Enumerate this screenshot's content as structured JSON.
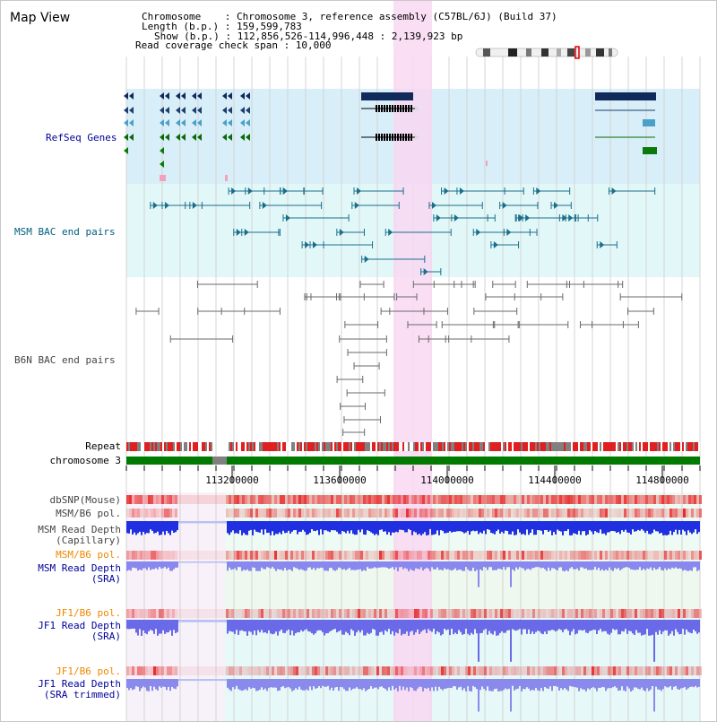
{
  "view_title": "Map View",
  "info": {
    "chromosome_line": "Chromosome    : Chromosome 3, reference assembly (C57BL/6J) (Build 37)",
    "length_line": "Length (b.p.) : 159,599,783",
    "show_line": "Show (b.p.) : 112,856,526-114,996,448 : 2,139,923 bp",
    "coverage_line": "Read coverage check span : 10,000"
  },
  "tracks": {
    "refseq": "RefSeq Genes",
    "msm_bac": "MSM BAC end pairs",
    "b6n_bac": "B6N BAC end pairs",
    "repeat": "Repeat",
    "chromosome": "chromosome 3",
    "dbsnp": "dbSNP(Mouse)",
    "msm_b6_pol_1": "MSM/B6 pol.",
    "msm_depth_cap_1": "MSM Read Depth",
    "msm_depth_cap_2": "(Capillary)",
    "msm_b6_pol_2": "MSM/B6 pol.",
    "msm_depth_sra_1": "MSM Read Depth",
    "msm_depth_sra_2": "(SRA)",
    "jf1_b6_pol_1": "JF1/B6 pol.",
    "jf1_depth_sra_1": "JF1 Read Depth",
    "jf1_depth_sra_2": "(SRA)",
    "jf1_b6_pol_2": "JF1/B6 pol.",
    "jf1_depth_trim_1": "JF1 Read Depth",
    "jf1_depth_trim_2": "(SRA trimmed)"
  },
  "scale": {
    "ticks": [
      "113200000",
      "113600000",
      "114000000",
      "114400000",
      "114800000"
    ]
  },
  "colors": {
    "track_label_blue": "#000099",
    "track_label_teal": "#006080",
    "track_label_gray": "#444444",
    "track_label_orange": "#ee8800",
    "highlight": "#f8d8f2",
    "refseq_bg": "#d8eef8",
    "bac_bg": "#e2f8f8"
  }
}
